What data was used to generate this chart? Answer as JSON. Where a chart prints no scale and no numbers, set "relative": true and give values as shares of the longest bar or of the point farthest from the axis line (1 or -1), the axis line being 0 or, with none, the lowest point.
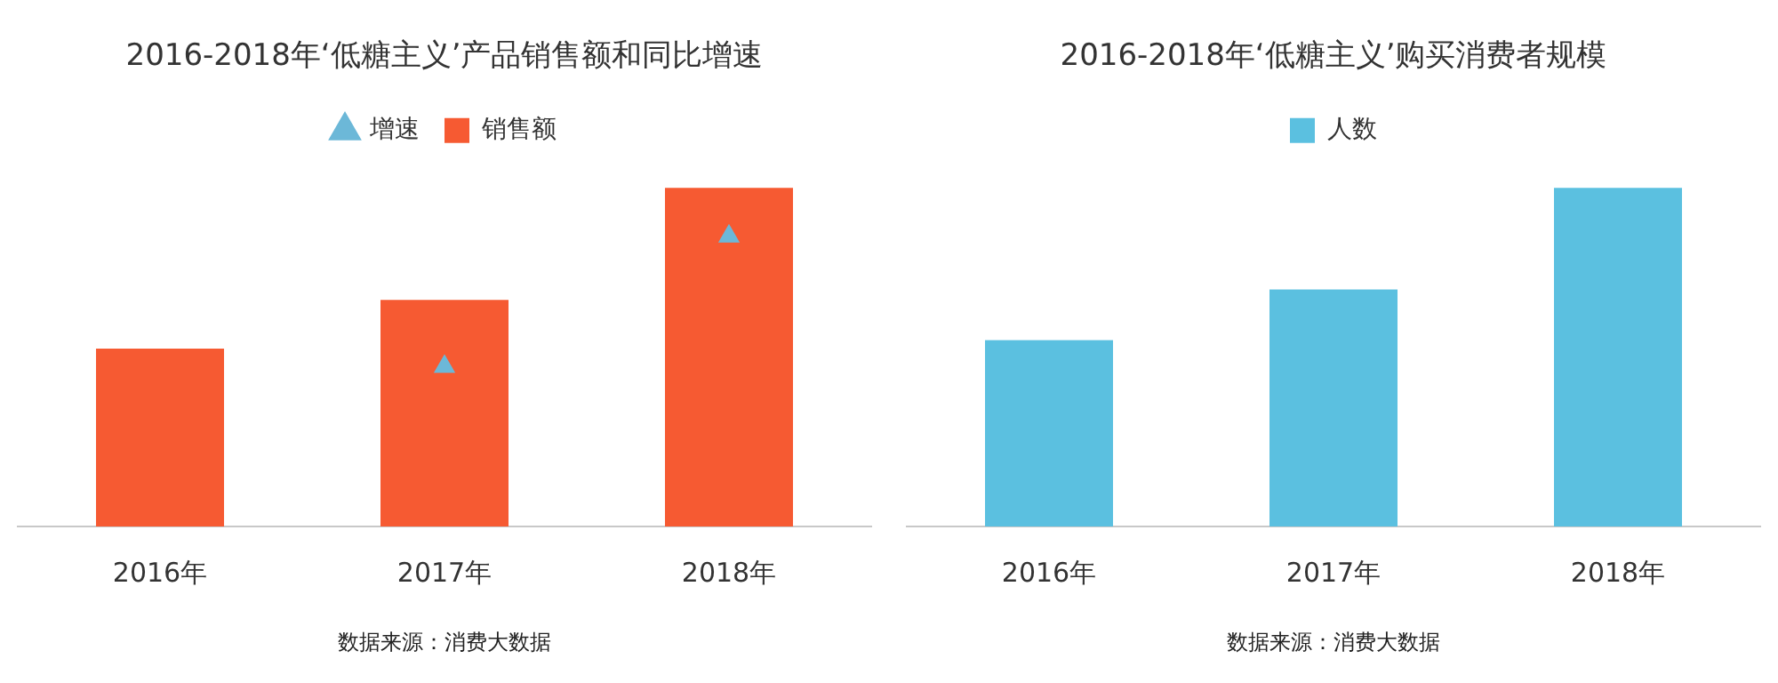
{
  "chart_data": [
    {
      "type": "bar",
      "title": "2016-2018年‘低糖主义’产品销售额和同比增速",
      "categories": [
        "2016年",
        "2017年",
        "2018年"
      ],
      "relative": true,
      "legend": "top",
      "series": [
        {
          "name": "销售额",
          "color": "#f65a32",
          "values": [
            0.525,
            0.669,
            1
          ]
        },
        {
          "name": "增速",
          "type": "scatter",
          "axis": "y2",
          "marker": "triangle",
          "color": "#6cb8d8",
          "x": [
            "2017年",
            "2018年"
          ],
          "values": [
            0.551,
            1
          ]
        }
      ],
      "annotations": [
        "数据来源：消费大数据"
      ]
    },
    {
      "type": "bar",
      "title": "2016-2018年‘低糖主义’购买消费者规模",
      "categories": [
        "2016年",
        "2017年",
        "2018年"
      ],
      "relative": true,
      "legend": "top",
      "series": [
        {
          "name": "人数",
          "color": "#5bc0e0",
          "values": [
            0.55,
            0.7,
            1
          ]
        }
      ],
      "annotations": [
        "数据来源：消费大数据"
      ]
    }
  ]
}
